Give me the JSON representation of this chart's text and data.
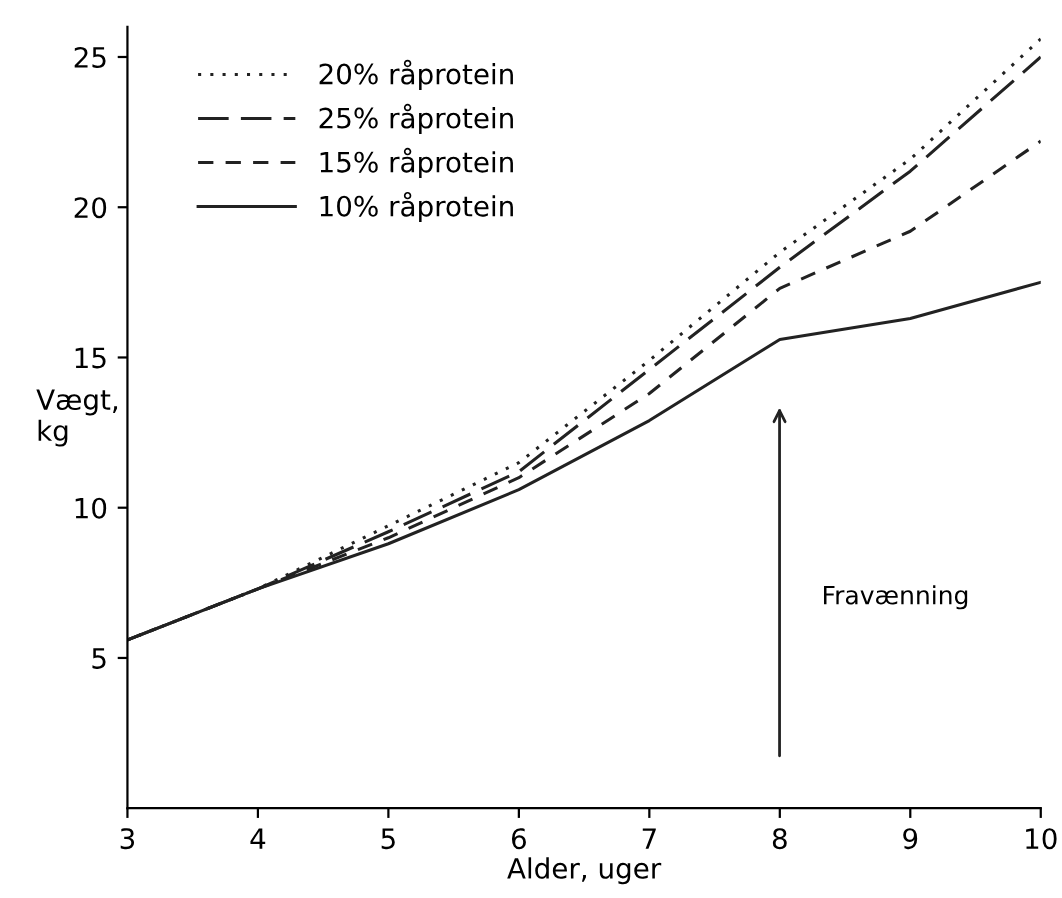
{
  "chart_data": {
    "type": "line",
    "xlabel": "Alder, uger",
    "ylabel": "Vægt,\nkg",
    "x": [
      3,
      4,
      5,
      6,
      7,
      8,
      9,
      10
    ],
    "series": [
      {
        "name": "20% råprotein",
        "color": "#222222",
        "line_style": "dotted",
        "values": [
          5.6,
          7.3,
          9.4,
          11.5,
          14.9,
          18.5,
          21.6,
          25.6
        ]
      },
      {
        "name": "25% råprotein",
        "color": "#222222",
        "line_style": "long-dashed",
        "values": [
          5.6,
          7.3,
          9.2,
          11.2,
          14.6,
          18.0,
          21.2,
          25.0
        ]
      },
      {
        "name": "15% råprotein",
        "color": "#222222",
        "line_style": "dashed",
        "values": [
          5.6,
          7.3,
          9.0,
          11.0,
          13.8,
          17.3,
          19.2,
          22.2
        ]
      },
      {
        "name": "10% råprotein",
        "color": "#222222",
        "line_style": "solid",
        "values": [
          5.6,
          7.3,
          8.8,
          10.6,
          12.9,
          15.6,
          16.3,
          17.5
        ]
      }
    ],
    "xlim": [
      3,
      10
    ],
    "xticks": [
      3,
      4,
      5,
      6,
      7,
      8,
      9,
      10
    ],
    "ylim": [
      0,
      26
    ],
    "yticks": [
      5,
      10,
      15,
      20,
      25
    ],
    "annotations": [
      "Fravænning"
    ],
    "legend": "top left",
    "grid": false,
    "marker": "none"
  }
}
